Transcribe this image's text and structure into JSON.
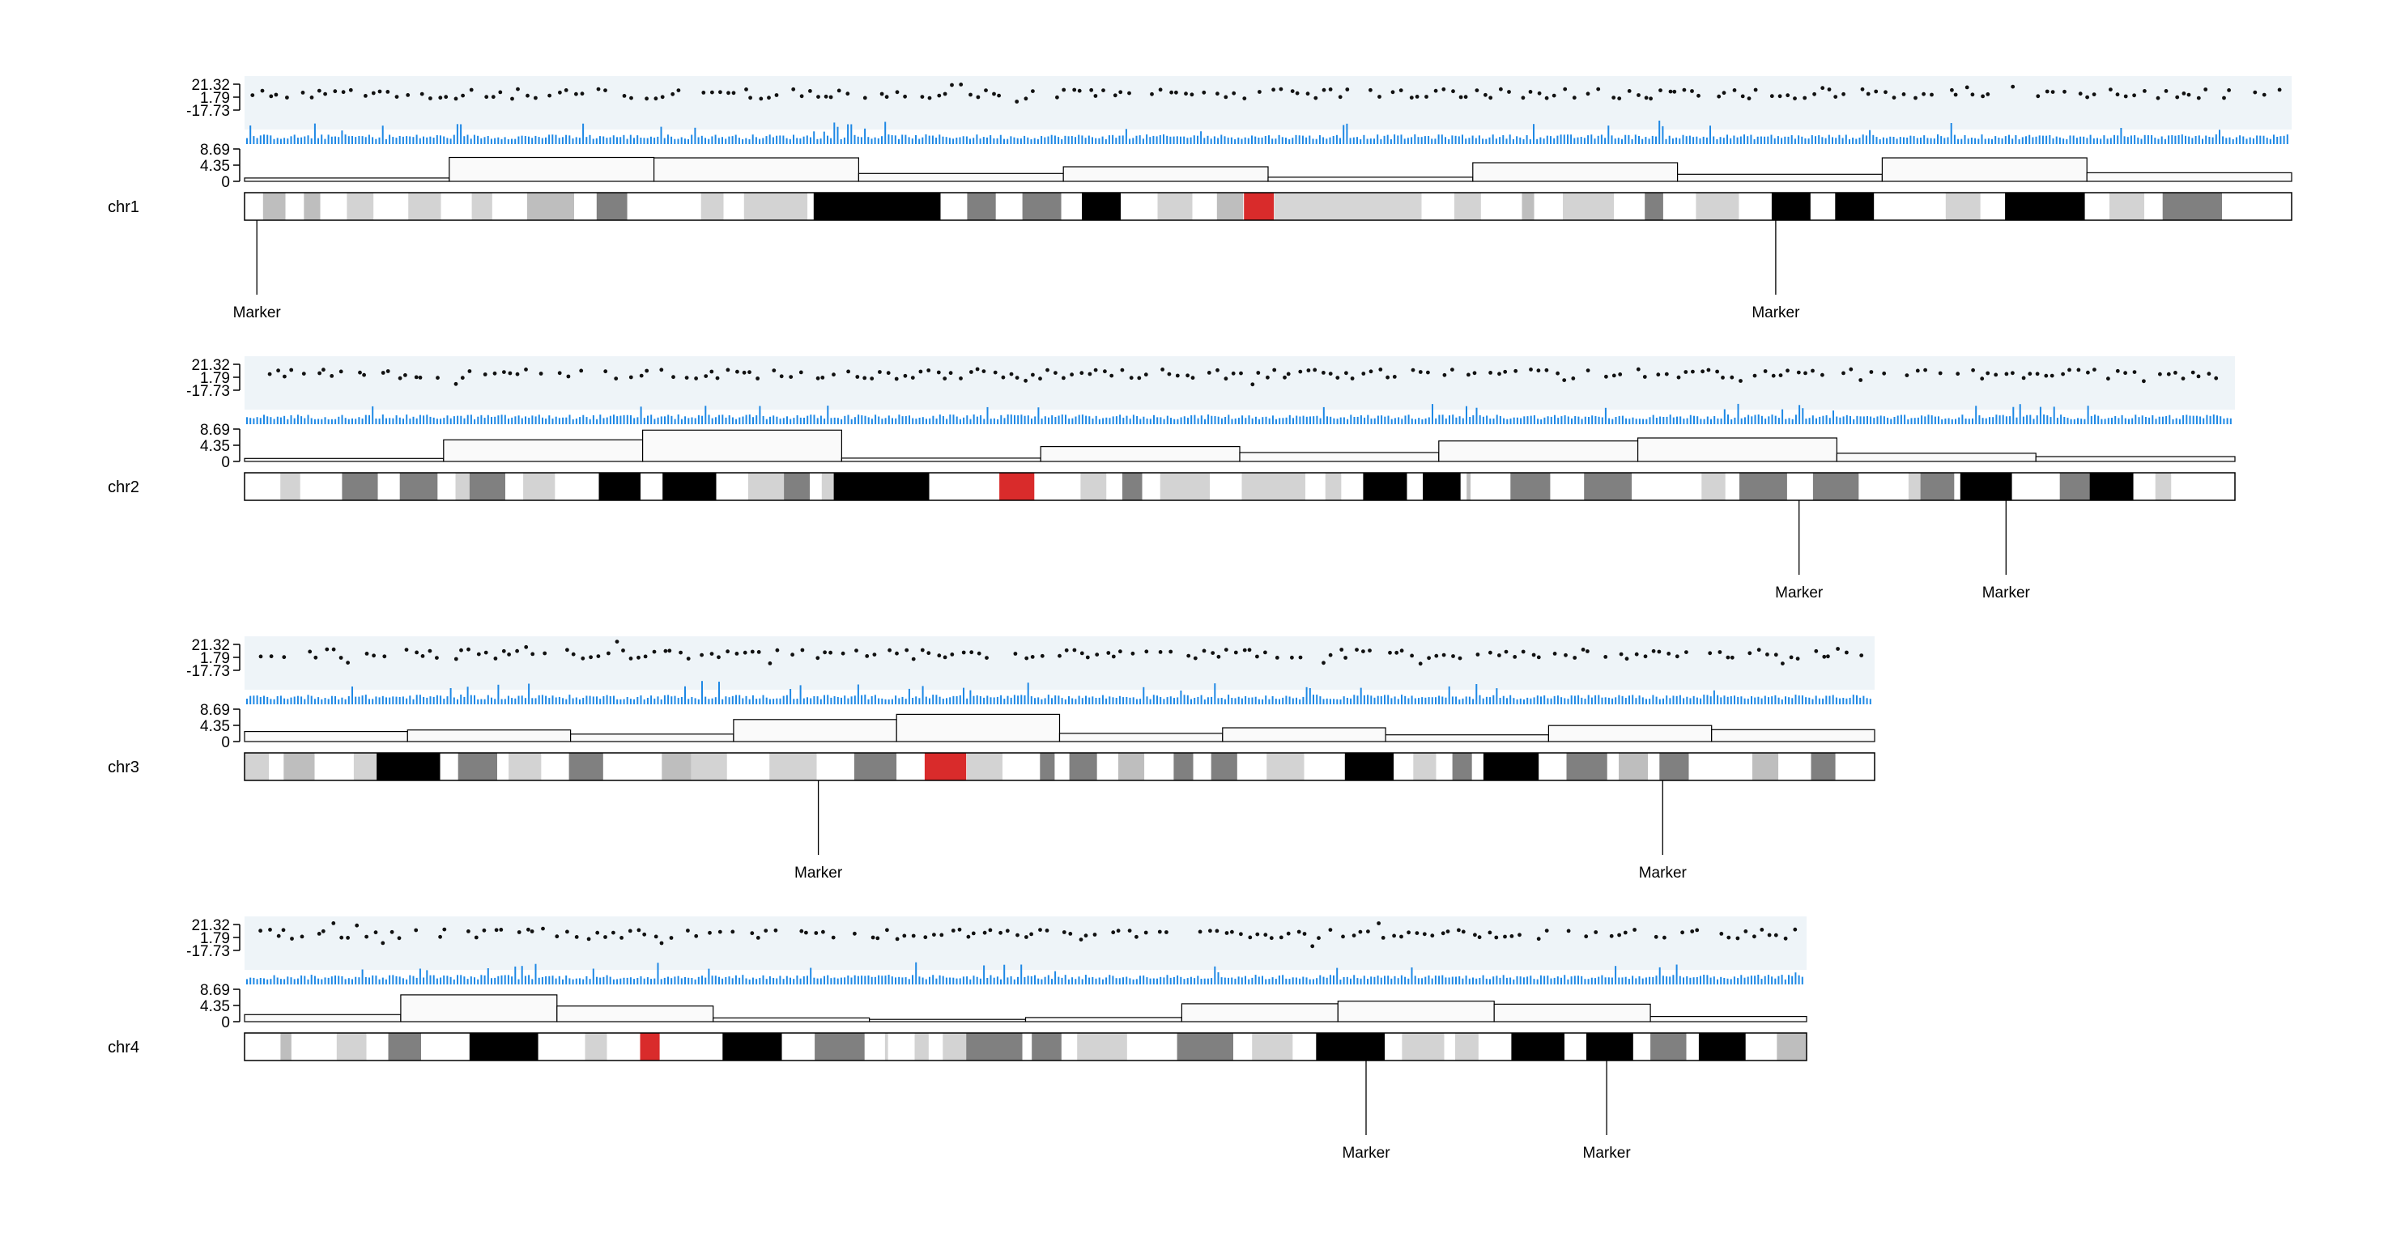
{
  "chart_data": {
    "type": "ideogram",
    "title": "",
    "scatter_ticks": [
      "21.32",
      "1.79",
      "-17.73"
    ],
    "hist_ticks": [
      "8.69",
      "4.35",
      "0"
    ],
    "colors": {
      "scatter_bg": "#eef4f8",
      "bar": "#1e88e5",
      "point": "#111111",
      "gneg": "#ffffff",
      "gpos25": "#d3d3d3",
      "gpos50": "#bebebe",
      "gpos75": "#808080",
      "gpos100": "#000000",
      "acen": "#d92b2b",
      "gvar": "#d6d6d6"
    },
    "chromosomes": [
      {
        "name": "chr1",
        "hist_values": [
          0.9,
          6.4,
          6.3,
          2.1,
          3.9,
          1.1,
          5.0,
          1.9,
          6.3,
          2.3
        ],
        "markers": [
          {
            "label": "Marker",
            "pos": 0.006
          },
          {
            "label": "Marker",
            "pos": 0.748
          }
        ],
        "bands": [
          {
            "end": 0.009,
            "stain": "gneg"
          },
          {
            "end": 0.02,
            "stain": "gpos50"
          },
          {
            "end": 0.029,
            "stain": "gneg"
          },
          {
            "end": 0.037,
            "stain": "gpos50"
          },
          {
            "end": 0.05,
            "stain": "gneg"
          },
          {
            "end": 0.063,
            "stain": "gpos25"
          },
          {
            "end": 0.08,
            "stain": "gneg"
          },
          {
            "end": 0.096,
            "stain": "gpos25"
          },
          {
            "end": 0.111,
            "stain": "gneg"
          },
          {
            "end": 0.121,
            "stain": "gpos25"
          },
          {
            "end": 0.138,
            "stain": "gneg"
          },
          {
            "end": 0.161,
            "stain": "gpos50"
          },
          {
            "end": 0.172,
            "stain": "gneg"
          },
          {
            "end": 0.187,
            "stain": "gpos75"
          },
          {
            "end": 0.223,
            "stain": "gneg"
          },
          {
            "end": 0.234,
            "stain": "gpos25"
          },
          {
            "end": 0.244,
            "stain": "gneg"
          },
          {
            "end": 0.275,
            "stain": "gpos25"
          },
          {
            "end": 0.278,
            "stain": "gneg"
          },
          {
            "end": 0.34,
            "stain": "gpos100"
          },
          {
            "end": 0.353,
            "stain": "gneg"
          },
          {
            "end": 0.367,
            "stain": "gpos75"
          },
          {
            "end": 0.38,
            "stain": "gneg"
          },
          {
            "end": 0.399,
            "stain": "gpos75"
          },
          {
            "end": 0.409,
            "stain": "gneg"
          },
          {
            "end": 0.428,
            "stain": "gpos100"
          },
          {
            "end": 0.446,
            "stain": "gneg"
          },
          {
            "end": 0.463,
            "stain": "gpos25"
          },
          {
            "end": 0.475,
            "stain": "gneg"
          },
          {
            "end": 0.488,
            "stain": "gpos50"
          },
          {
            "end": 0.503,
            "stain": "acen"
          },
          {
            "end": 0.575,
            "stain": "gvar"
          },
          {
            "end": 0.591,
            "stain": "gneg"
          },
          {
            "end": 0.604,
            "stain": "gpos25"
          },
          {
            "end": 0.624,
            "stain": "gneg"
          },
          {
            "end": 0.63,
            "stain": "gpos50"
          },
          {
            "end": 0.644,
            "stain": "gneg"
          },
          {
            "end": 0.669,
            "stain": "gpos25"
          },
          {
            "end": 0.684,
            "stain": "gneg"
          },
          {
            "end": 0.693,
            "stain": "gpos75"
          },
          {
            "end": 0.709,
            "stain": "gneg"
          },
          {
            "end": 0.73,
            "stain": "gpos25"
          },
          {
            "end": 0.746,
            "stain": "gneg"
          },
          {
            "end": 0.765,
            "stain": "gpos100"
          },
          {
            "end": 0.777,
            "stain": "gneg"
          },
          {
            "end": 0.796,
            "stain": "gpos100"
          },
          {
            "end": 0.831,
            "stain": "gneg"
          },
          {
            "end": 0.848,
            "stain": "gpos25"
          },
          {
            "end": 0.86,
            "stain": "gneg"
          },
          {
            "end": 0.899,
            "stain": "gpos100"
          },
          {
            "end": 0.911,
            "stain": "gneg"
          },
          {
            "end": 0.928,
            "stain": "gpos25"
          },
          {
            "end": 0.937,
            "stain": "gneg"
          },
          {
            "end": 0.966,
            "stain": "gpos75"
          },
          {
            "end": 1.0,
            "stain": "gneg"
          }
        ]
      },
      {
        "name": "chr2",
        "hist_values": [
          0.8,
          5.8,
          8.4,
          0.9,
          4.0,
          2.4,
          5.5,
          6.3,
          2.2,
          1.3
        ],
        "markers": [
          {
            "label": "Marker",
            "pos": 0.781
          },
          {
            "label": "Marker",
            "pos": 0.885
          }
        ],
        "bands": [
          {
            "end": 0.018,
            "stain": "gneg"
          },
          {
            "end": 0.028,
            "stain": "gpos25"
          },
          {
            "end": 0.049,
            "stain": "gneg"
          },
          {
            "end": 0.067,
            "stain": "gpos75"
          },
          {
            "end": 0.078,
            "stain": "gneg"
          },
          {
            "end": 0.097,
            "stain": "gpos75"
          },
          {
            "end": 0.106,
            "stain": "gneg"
          },
          {
            "end": 0.113,
            "stain": "gpos25"
          },
          {
            "end": 0.131,
            "stain": "gpos75"
          },
          {
            "end": 0.14,
            "stain": "gneg"
          },
          {
            "end": 0.156,
            "stain": "gpos25"
          },
          {
            "end": 0.178,
            "stain": "gneg"
          },
          {
            "end": 0.199,
            "stain": "gpos100"
          },
          {
            "end": 0.21,
            "stain": "gneg"
          },
          {
            "end": 0.237,
            "stain": "gpos100"
          },
          {
            "end": 0.253,
            "stain": "gneg"
          },
          {
            "end": 0.271,
            "stain": "gpos25"
          },
          {
            "end": 0.284,
            "stain": "gpos75"
          },
          {
            "end": 0.29,
            "stain": "gneg"
          },
          {
            "end": 0.296,
            "stain": "gpos25"
          },
          {
            "end": 0.344,
            "stain": "gpos100"
          },
          {
            "end": 0.379,
            "stain": "gneg"
          },
          {
            "end": 0.397,
            "stain": "acen"
          },
          {
            "end": 0.42,
            "stain": "gneg"
          },
          {
            "end": 0.433,
            "stain": "gpos25"
          },
          {
            "end": 0.441,
            "stain": "gneg"
          },
          {
            "end": 0.451,
            "stain": "gpos75"
          },
          {
            "end": 0.46,
            "stain": "gneg"
          },
          {
            "end": 0.485,
            "stain": "gpos25"
          },
          {
            "end": 0.501,
            "stain": "gneg"
          },
          {
            "end": 0.533,
            "stain": "gpos25"
          },
          {
            "end": 0.543,
            "stain": "gneg"
          },
          {
            "end": 0.551,
            "stain": "gpos25"
          },
          {
            "end": 0.562,
            "stain": "gneg"
          },
          {
            "end": 0.584,
            "stain": "gpos100"
          },
          {
            "end": 0.592,
            "stain": "gneg"
          },
          {
            "end": 0.611,
            "stain": "gpos100"
          },
          {
            "end": 0.614,
            "stain": "gneg"
          },
          {
            "end": 0.616,
            "stain": "gpos50"
          },
          {
            "end": 0.636,
            "stain": "gneg"
          },
          {
            "end": 0.656,
            "stain": "gpos75"
          },
          {
            "end": 0.673,
            "stain": "gneg"
          },
          {
            "end": 0.697,
            "stain": "gpos75"
          },
          {
            "end": 0.732,
            "stain": "gneg"
          },
          {
            "end": 0.744,
            "stain": "gpos25"
          },
          {
            "end": 0.751,
            "stain": "gneg"
          },
          {
            "end": 0.775,
            "stain": "gpos75"
          },
          {
            "end": 0.788,
            "stain": "gneg"
          },
          {
            "end": 0.811,
            "stain": "gpos75"
          },
          {
            "end": 0.836,
            "stain": "gneg"
          },
          {
            "end": 0.842,
            "stain": "gpos25"
          },
          {
            "end": 0.859,
            "stain": "gpos75"
          },
          {
            "end": 0.862,
            "stain": "gneg"
          },
          {
            "end": 0.888,
            "stain": "gpos100"
          },
          {
            "end": 0.912,
            "stain": "gneg"
          },
          {
            "end": 0.927,
            "stain": "gpos75"
          },
          {
            "end": 0.949,
            "stain": "gpos100"
          },
          {
            "end": 0.96,
            "stain": "gneg"
          },
          {
            "end": 0.968,
            "stain": "gpos25"
          },
          {
            "end": 1.0,
            "stain": "gneg"
          }
        ]
      },
      {
        "name": "chr3",
        "hist_values": [
          2.7,
          3.1,
          2.0,
          5.9,
          7.3,
          2.2,
          3.7,
          1.8,
          4.3,
          3.2
        ],
        "markers": [
          {
            "label": "Marker",
            "pos": 0.352
          },
          {
            "label": "Marker",
            "pos": 0.87
          }
        ],
        "bands": [
          {
            "end": 0.015,
            "stain": "gpos25"
          },
          {
            "end": 0.024,
            "stain": "gneg"
          },
          {
            "end": 0.043,
            "stain": "gpos50"
          },
          {
            "end": 0.067,
            "stain": "gneg"
          },
          {
            "end": 0.081,
            "stain": "gpos25"
          },
          {
            "end": 0.12,
            "stain": "gpos100"
          },
          {
            "end": 0.131,
            "stain": "gneg"
          },
          {
            "end": 0.155,
            "stain": "gpos75"
          },
          {
            "end": 0.162,
            "stain": "gneg"
          },
          {
            "end": 0.182,
            "stain": "gpos25"
          },
          {
            "end": 0.199,
            "stain": "gneg"
          },
          {
            "end": 0.22,
            "stain": "gpos75"
          },
          {
            "end": 0.224,
            "stain": "gneg"
          },
          {
            "end": 0.256,
            "stain": "gneg"
          },
          {
            "end": 0.274,
            "stain": "gpos50"
          },
          {
            "end": 0.296,
            "stain": "gpos25"
          },
          {
            "end": 0.322,
            "stain": "gneg"
          },
          {
            "end": 0.351,
            "stain": "gpos25"
          },
          {
            "end": 0.374,
            "stain": "gneg"
          },
          {
            "end": 0.4,
            "stain": "gpos75"
          },
          {
            "end": 0.417,
            "stain": "gneg"
          },
          {
            "end": 0.443,
            "stain": "acen"
          },
          {
            "end": 0.465,
            "stain": "gpos25"
          },
          {
            "end": 0.488,
            "stain": "gneg"
          },
          {
            "end": 0.497,
            "stain": "gpos75"
          },
          {
            "end": 0.506,
            "stain": "gneg"
          },
          {
            "end": 0.523,
            "stain": "gpos75"
          },
          {
            "end": 0.536,
            "stain": "gneg"
          },
          {
            "end": 0.552,
            "stain": "gpos50"
          },
          {
            "end": 0.57,
            "stain": "gneg"
          },
          {
            "end": 0.582,
            "stain": "gpos75"
          },
          {
            "end": 0.593,
            "stain": "gneg"
          },
          {
            "end": 0.609,
            "stain": "gpos75"
          },
          {
            "end": 0.627,
            "stain": "gneg"
          },
          {
            "end": 0.65,
            "stain": "gpos25"
          },
          {
            "end": 0.675,
            "stain": "gneg"
          },
          {
            "end": 0.705,
            "stain": "gpos100"
          },
          {
            "end": 0.717,
            "stain": "gneg"
          },
          {
            "end": 0.731,
            "stain": "gpos25"
          },
          {
            "end": 0.741,
            "stain": "gneg"
          },
          {
            "end": 0.753,
            "stain": "gpos75"
          },
          {
            "end": 0.76,
            "stain": "gneg"
          },
          {
            "end": 0.794,
            "stain": "gpos100"
          },
          {
            "end": 0.811,
            "stain": "gneg"
          },
          {
            "end": 0.836,
            "stain": "gpos75"
          },
          {
            "end": 0.843,
            "stain": "gneg"
          },
          {
            "end": 0.861,
            "stain": "gpos50"
          },
          {
            "end": 0.868,
            "stain": "gneg"
          },
          {
            "end": 0.886,
            "stain": "gpos75"
          },
          {
            "end": 0.925,
            "stain": "gneg"
          },
          {
            "end": 0.941,
            "stain": "gpos50"
          },
          {
            "end": 0.961,
            "stain": "gneg"
          },
          {
            "end": 0.976,
            "stain": "gpos75"
          },
          {
            "end": 1.0,
            "stain": "gneg"
          }
        ]
      },
      {
        "name": "chr4",
        "hist_values": [
          1.9,
          7.2,
          4.2,
          1.0,
          0.6,
          1.1,
          4.8,
          5.5,
          4.7,
          1.4
        ],
        "markers": [
          {
            "label": "Marker",
            "pos": 0.718
          },
          {
            "label": "Marker",
            "pos": 0.872
          }
        ],
        "bands": [
          {
            "end": 0.023,
            "stain": "gneg"
          },
          {
            "end": 0.03,
            "stain": "gpos50"
          },
          {
            "end": 0.059,
            "stain": "gneg"
          },
          {
            "end": 0.078,
            "stain": "gpos25"
          },
          {
            "end": 0.092,
            "stain": "gneg"
          },
          {
            "end": 0.113,
            "stain": "gpos75"
          },
          {
            "end": 0.144,
            "stain": "gneg"
          },
          {
            "end": 0.188,
            "stain": "gpos100"
          },
          {
            "end": 0.218,
            "stain": "gneg"
          },
          {
            "end": 0.232,
            "stain": "gpos25"
          },
          {
            "end": 0.253,
            "stain": "gneg"
          },
          {
            "end": 0.266,
            "stain": "acen"
          },
          {
            "end": 0.306,
            "stain": "gneg"
          },
          {
            "end": 0.344,
            "stain": "gpos100"
          },
          {
            "end": 0.365,
            "stain": "gneg"
          },
          {
            "end": 0.397,
            "stain": "gpos75"
          },
          {
            "end": 0.41,
            "stain": "gneg"
          },
          {
            "end": 0.412,
            "stain": "gpos25"
          },
          {
            "end": 0.429,
            "stain": "gneg"
          },
          {
            "end": 0.438,
            "stain": "gpos25"
          },
          {
            "end": 0.447,
            "stain": "gneg"
          },
          {
            "end": 0.462,
            "stain": "gpos25"
          },
          {
            "end": 0.498,
            "stain": "gpos75"
          },
          {
            "end": 0.504,
            "stain": "gneg"
          },
          {
            "end": 0.523,
            "stain": "gpos75"
          },
          {
            "end": 0.533,
            "stain": "gneg"
          },
          {
            "end": 0.565,
            "stain": "gpos25"
          },
          {
            "end": 0.597,
            "stain": "gneg"
          },
          {
            "end": 0.633,
            "stain": "gpos75"
          },
          {
            "end": 0.645,
            "stain": "gneg"
          },
          {
            "end": 0.671,
            "stain": "gpos25"
          },
          {
            "end": 0.686,
            "stain": "gneg"
          },
          {
            "end": 0.73,
            "stain": "gpos100"
          },
          {
            "end": 0.741,
            "stain": "gneg"
          },
          {
            "end": 0.768,
            "stain": "gpos25"
          },
          {
            "end": 0.775,
            "stain": "gneg"
          },
          {
            "end": 0.79,
            "stain": "gpos25"
          },
          {
            "end": 0.811,
            "stain": "gneg"
          },
          {
            "end": 0.845,
            "stain": "gpos100"
          },
          {
            "end": 0.859,
            "stain": "gneg"
          },
          {
            "end": 0.889,
            "stain": "gpos100"
          },
          {
            "end": 0.9,
            "stain": "gneg"
          },
          {
            "end": 0.923,
            "stain": "gpos75"
          },
          {
            "end": 0.931,
            "stain": "gneg"
          },
          {
            "end": 0.961,
            "stain": "gpos100"
          },
          {
            "end": 0.981,
            "stain": "gneg"
          },
          {
            "end": 1.0,
            "stain": "gpos50"
          }
        ]
      }
    ]
  }
}
